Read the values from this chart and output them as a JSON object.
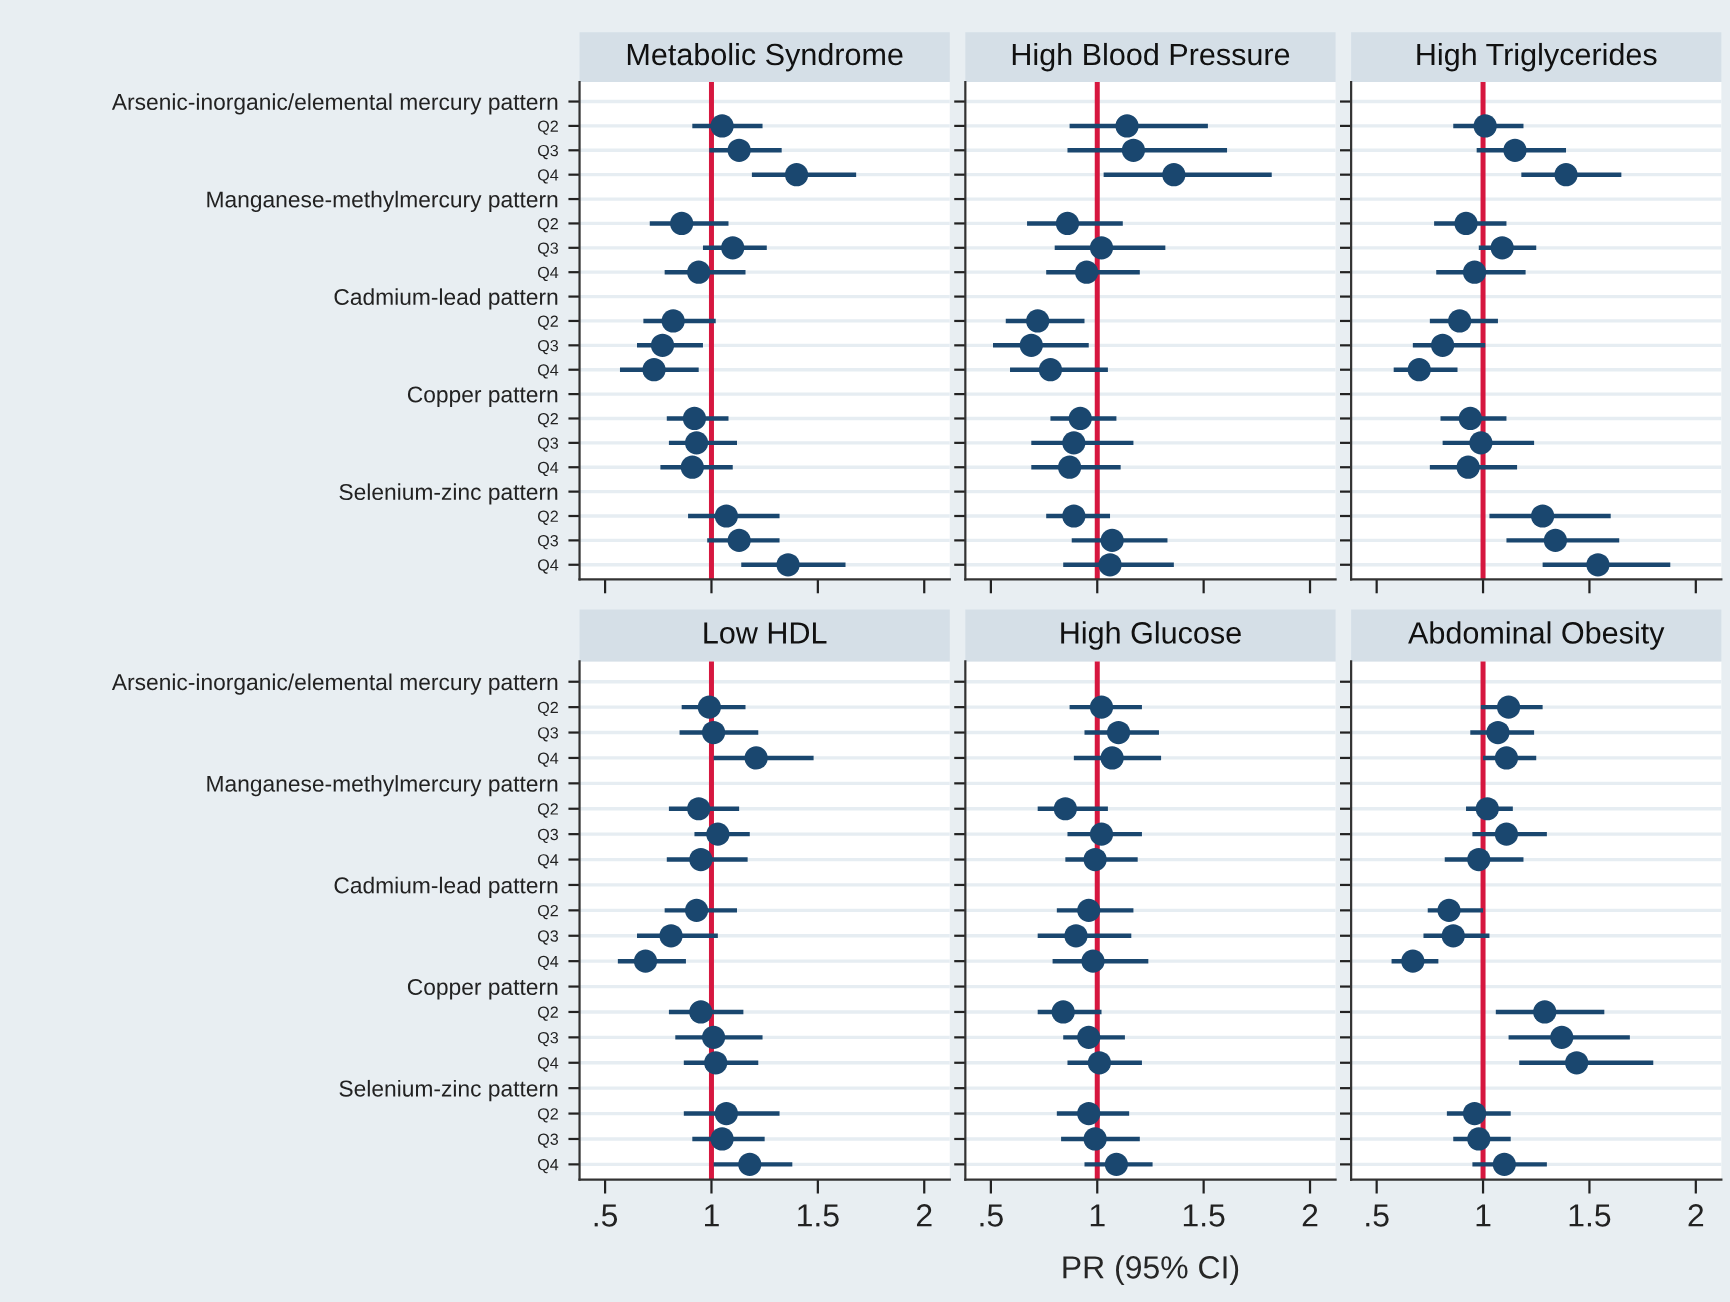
{
  "chart_data": [
    {
      "type": "scatter",
      "orientation": "horizontal",
      "title": "Metabolic Syndrome",
      "tick_labels": "y",
      "grid": "y",
      "marker": "circle",
      "categories": [
        "Arsenic-inorganic/elemental mercury pattern",
        "Q2",
        "Q3",
        "Q4",
        "Manganese-methylmercury pattern",
        "Q2",
        "Q3",
        "Q4",
        "Cadmium-lead pattern",
        "Q2",
        "Q3",
        "Q4",
        "Copper pattern",
        "Q2",
        "Q3",
        "Q4",
        "Selenium-zinc pattern",
        "Q2",
        "Q3",
        "Q4"
      ],
      "series": [
        {
          "color": "#1a476f",
          "values": [
            null,
            1.05,
            1.13,
            1.4,
            null,
            0.86,
            1.1,
            0.94,
            null,
            0.82,
            0.77,
            0.73,
            null,
            0.92,
            0.93,
            0.91,
            null,
            1.07,
            1.13,
            1.36
          ],
          "errors": [
            null,
            [
              0.91,
              1.24
            ],
            [
              0.99,
              1.33
            ],
            [
              1.19,
              1.68
            ],
            null,
            [
              0.71,
              1.08
            ],
            [
              0.96,
              1.26
            ],
            [
              0.78,
              1.16
            ],
            null,
            [
              0.68,
              1.02
            ],
            [
              0.65,
              0.96
            ],
            [
              0.57,
              0.94
            ],
            null,
            [
              0.79,
              1.08
            ],
            [
              0.8,
              1.12
            ],
            [
              0.76,
              1.1
            ],
            null,
            [
              0.89,
              1.32
            ],
            [
              0.98,
              1.32
            ],
            [
              1.14,
              1.63
            ]
          ]
        }
      ],
      "xlim": [
        0.38,
        2.12
      ],
      "xticks": [
        {
          "value": 0.5,
          "label": null
        },
        {
          "value": 1,
          "label": null
        },
        {
          "value": 1.5,
          "label": null
        },
        {
          "value": 2,
          "label": null
        }
      ],
      "ref_lines": [
        {
          "axis": "x",
          "value": 1,
          "color": "#d6173f"
        }
      ]
    },
    {
      "type": "scatter",
      "orientation": "horizontal",
      "title": "High Blood Pressure",
      "tick_labels": false,
      "grid": "y",
      "marker": "circle",
      "categories": [
        null,
        null,
        null,
        null,
        null,
        null,
        null,
        null,
        null,
        null,
        null,
        null,
        null,
        null,
        null,
        null,
        null,
        null,
        null,
        null
      ],
      "series": [
        {
          "color": "#1a476f",
          "values": [
            null,
            1.14,
            1.17,
            1.36,
            null,
            0.86,
            1.02,
            0.95,
            null,
            0.72,
            0.69,
            0.78,
            null,
            0.92,
            0.89,
            0.87,
            null,
            0.89,
            1.07,
            1.06
          ],
          "errors": [
            null,
            [
              0.87,
              1.52
            ],
            [
              0.86,
              1.61
            ],
            [
              1.03,
              1.82
            ],
            null,
            [
              0.67,
              1.12
            ],
            [
              0.8,
              1.32
            ],
            [
              0.76,
              1.2
            ],
            null,
            [
              0.57,
              0.94
            ],
            [
              0.51,
              0.96
            ],
            [
              0.59,
              1.05
            ],
            null,
            [
              0.78,
              1.09
            ],
            [
              0.69,
              1.17
            ],
            [
              0.69,
              1.11
            ],
            null,
            [
              0.76,
              1.06
            ],
            [
              0.88,
              1.33
            ],
            [
              0.84,
              1.36
            ]
          ]
        }
      ],
      "xlim": [
        0.38,
        2.12
      ],
      "xticks": [
        {
          "value": 0.5,
          "label": null
        },
        {
          "value": 1,
          "label": null
        },
        {
          "value": 1.5,
          "label": null
        },
        {
          "value": 2,
          "label": null
        }
      ],
      "ref_lines": [
        {
          "axis": "x",
          "value": 1,
          "color": "#d6173f"
        }
      ]
    },
    {
      "type": "scatter",
      "orientation": "horizontal",
      "title": "High Triglycerides",
      "tick_labels": false,
      "grid": "y",
      "marker": "circle",
      "categories": [
        null,
        null,
        null,
        null,
        null,
        null,
        null,
        null,
        null,
        null,
        null,
        null,
        null,
        null,
        null,
        null,
        null,
        null,
        null,
        null
      ],
      "series": [
        {
          "color": "#1a476f",
          "values": [
            null,
            1.01,
            1.15,
            1.39,
            null,
            0.92,
            1.09,
            0.96,
            null,
            0.89,
            0.81,
            0.7,
            null,
            0.94,
            0.99,
            0.93,
            null,
            1.28,
            1.34,
            1.54
          ],
          "errors": [
            null,
            [
              0.86,
              1.19
            ],
            [
              0.97,
              1.39
            ],
            [
              1.18,
              1.65
            ],
            null,
            [
              0.77,
              1.11
            ],
            [
              0.98,
              1.25
            ],
            [
              0.78,
              1.2
            ],
            null,
            [
              0.75,
              1.07
            ],
            [
              0.67,
              1.01
            ],
            [
              0.58,
              0.88
            ],
            null,
            [
              0.8,
              1.11
            ],
            [
              0.81,
              1.24
            ],
            [
              0.75,
              1.16
            ],
            null,
            [
              1.03,
              1.6
            ],
            [
              1.11,
              1.64
            ],
            [
              1.28,
              1.88
            ]
          ]
        }
      ],
      "xlim": [
        0.38,
        2.12
      ],
      "xticks": [
        {
          "value": 0.5,
          "label": null
        },
        {
          "value": 1,
          "label": null
        },
        {
          "value": 1.5,
          "label": null
        },
        {
          "value": 2,
          "label": null
        }
      ],
      "ref_lines": [
        {
          "axis": "x",
          "value": 1,
          "color": "#d6173f"
        }
      ]
    },
    {
      "type": "scatter",
      "orientation": "horizontal",
      "title": "Low HDL",
      "grid": "y",
      "marker": "circle",
      "categories": [
        "Arsenic-inorganic/elemental mercury pattern",
        "Q2",
        "Q3",
        "Q4",
        "Manganese-methylmercury pattern",
        "Q2",
        "Q3",
        "Q4",
        "Cadmium-lead pattern",
        "Q2",
        "Q3",
        "Q4",
        "Copper pattern",
        "Q2",
        "Q3",
        "Q4",
        "Selenium-zinc pattern",
        "Q2",
        "Q3",
        "Q4"
      ],
      "series": [
        {
          "color": "#1a476f",
          "values": [
            null,
            0.99,
            1.01,
            1.21,
            null,
            0.94,
            1.03,
            0.95,
            null,
            0.93,
            0.81,
            0.69,
            null,
            0.95,
            1.01,
            1.02,
            null,
            1.07,
            1.05,
            1.18
          ],
          "errors": [
            null,
            [
              0.86,
              1.16
            ],
            [
              0.85,
              1.22
            ],
            [
              1.01,
              1.48
            ],
            null,
            [
              0.8,
              1.13
            ],
            [
              0.92,
              1.18
            ],
            [
              0.79,
              1.17
            ],
            null,
            [
              0.78,
              1.12
            ],
            [
              0.65,
              1.03
            ],
            [
              0.56,
              0.88
            ],
            null,
            [
              0.8,
              1.15
            ],
            [
              0.83,
              1.24
            ],
            [
              0.87,
              1.22
            ],
            null,
            [
              0.87,
              1.32
            ],
            [
              0.91,
              1.25
            ],
            [
              1.01,
              1.38
            ]
          ]
        }
      ],
      "xlim": [
        0.38,
        2.12
      ],
      "xticks": [
        {
          "value": 0.5,
          "label": ".5"
        },
        1,
        1.5,
        2
      ],
      "ref_lines": [
        {
          "axis": "x",
          "value": 1,
          "color": "#d6173f"
        }
      ]
    },
    {
      "type": "scatter",
      "orientation": "horizontal",
      "title": "High Glucose",
      "xlabel": "PR (95% CI)",
      "tick_labels": "x",
      "grid": "y",
      "marker": "circle",
      "categories": [
        null,
        null,
        null,
        null,
        null,
        null,
        null,
        null,
        null,
        null,
        null,
        null,
        null,
        null,
        null,
        null,
        null,
        null,
        null,
        null
      ],
      "series": [
        {
          "color": "#1a476f",
          "values": [
            null,
            1.02,
            1.1,
            1.07,
            null,
            0.85,
            1.02,
            0.99,
            null,
            0.96,
            0.9,
            0.98,
            null,
            0.84,
            0.96,
            1.01,
            null,
            0.96,
            0.99,
            1.09
          ],
          "errors": [
            null,
            [
              0.87,
              1.21
            ],
            [
              0.94,
              1.29
            ],
            [
              0.89,
              1.3
            ],
            null,
            [
              0.72,
              1.05
            ],
            [
              0.86,
              1.21
            ],
            [
              0.85,
              1.19
            ],
            null,
            [
              0.81,
              1.17
            ],
            [
              0.72,
              1.16
            ],
            [
              0.79,
              1.24
            ],
            null,
            [
              0.72,
              1.02
            ],
            [
              0.84,
              1.13
            ],
            [
              0.86,
              1.21
            ],
            null,
            [
              0.81,
              1.15
            ],
            [
              0.83,
              1.2
            ],
            [
              0.94,
              1.26
            ]
          ]
        }
      ],
      "xlim": [
        0.38,
        2.12
      ],
      "xticks": [
        {
          "value": 0.5,
          "label": ".5"
        },
        1,
        1.5,
        2
      ],
      "ref_lines": [
        {
          "axis": "x",
          "value": 1,
          "color": "#d6173f"
        }
      ]
    },
    {
      "type": "scatter",
      "orientation": "horizontal",
      "title": "Abdominal Obesity",
      "tick_labels": "x",
      "grid": "y",
      "marker": "circle",
      "categories": [
        null,
        null,
        null,
        null,
        null,
        null,
        null,
        null,
        null,
        null,
        null,
        null,
        null,
        null,
        null,
        null,
        null,
        null,
        null,
        null
      ],
      "series": [
        {
          "color": "#1a476f",
          "values": [
            null,
            1.12,
            1.07,
            1.11,
            null,
            1.02,
            1.11,
            0.98,
            null,
            0.84,
            0.86,
            0.67,
            null,
            1.29,
            1.37,
            1.44,
            null,
            0.96,
            0.98,
            1.1
          ],
          "errors": [
            null,
            [
              0.99,
              1.28
            ],
            [
              0.94,
              1.24
            ],
            [
              1.0,
              1.25
            ],
            null,
            [
              0.92,
              1.14
            ],
            [
              0.95,
              1.3
            ],
            [
              0.82,
              1.19
            ],
            null,
            [
              0.74,
              1.0
            ],
            [
              0.72,
              1.03
            ],
            [
              0.57,
              0.79
            ],
            null,
            [
              1.06,
              1.57
            ],
            [
              1.12,
              1.69
            ],
            [
              1.17,
              1.8
            ],
            null,
            [
              0.83,
              1.13
            ],
            [
              0.86,
              1.13
            ],
            [
              0.95,
              1.3
            ]
          ]
        }
      ],
      "xlim": [
        0.38,
        2.12
      ],
      "xticks": [
        {
          "value": 0.5,
          "label": ".5"
        },
        1,
        1.5,
        2
      ],
      "ref_lines": [
        {
          "axis": "x",
          "value": 1,
          "color": "#d6173f"
        }
      ]
    }
  ]
}
